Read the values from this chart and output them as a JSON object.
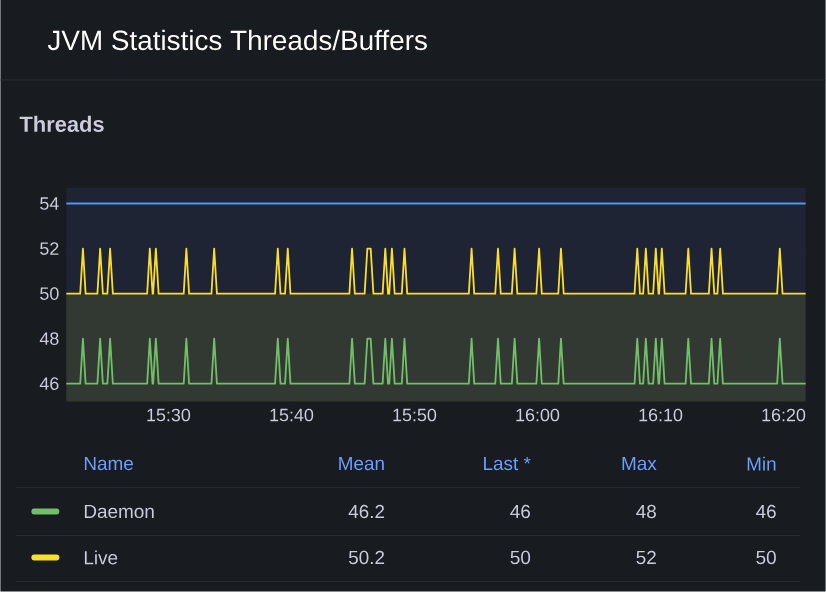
{
  "chart_data": {
    "type": "line",
    "title": "JVM Statistics Threads/Buffers",
    "subtitle": "Threads",
    "x": [
      15.3617,
      15.3805,
      15.3842,
      15.3878,
      15.4038,
      15.4075,
      15.4112,
      15.4173,
      15.421,
      15.4247,
      15.4712,
      15.4748,
      15.4785,
      15.4793,
      15.483,
      15.4867,
      15.5207,
      15.5243,
      15.528,
      15.5583,
      15.562,
      15.5657,
      15.6445,
      15.6482,
      15.6518,
      15.658,
      15.6617,
      15.6653,
      15.7452,
      15.7488,
      15.7525,
      15.7658,
      15.7695,
      15.774,
      15.7777,
      15.7902,
      15.7938,
      15.7975,
      15.7992,
      15.8028,
      15.8065,
      15.8162,
      15.8198,
      15.8235,
      15.907,
      15.9107,
      15.9143,
      15.9428,
      15.9465,
      15.9502,
      15.9653,
      15.969,
      15.9727,
      15.9985,
      16.0022,
      16.0058,
      16.0282,
      16.0318,
      16.0355,
      16.1315,
      16.1352,
      16.1388,
      16.1432,
      16.1468,
      16.1505,
      16.1567,
      16.1603,
      16.164,
      16.1648,
      16.1685,
      16.1722,
      16.2007,
      16.2043,
      16.208,
      16.2322,
      16.2358,
      16.2395,
      16.2438,
      16.2475,
      16.2512,
      16.3247,
      16.3283,
      16.332,
      16.3633
    ],
    "series": [
      {
        "name": "Daemon",
        "color": "#73bf69",
        "values": [
          46,
          46,
          48,
          46,
          46,
          48,
          46,
          46,
          48,
          46,
          46,
          48,
          46,
          46,
          48,
          46,
          46,
          48,
          46,
          46,
          48,
          46,
          46,
          48,
          46,
          46,
          48,
          46,
          46,
          48,
          46,
          46,
          48,
          48,
          46,
          46,
          48,
          46,
          46,
          48,
          46,
          46,
          48,
          46,
          46,
          48,
          46,
          46,
          48,
          46,
          46,
          48,
          46,
          46,
          48,
          46,
          46,
          48,
          46,
          46,
          48,
          46,
          46,
          48,
          46,
          46,
          48,
          46,
          46,
          48,
          46,
          46,
          48,
          46,
          46,
          48,
          46,
          46,
          48,
          46,
          46,
          48,
          46,
          46
        ]
      },
      {
        "name": "Live",
        "color": "#fade2a",
        "values": [
          50,
          50,
          52,
          50,
          50,
          52,
          50,
          50,
          52,
          50,
          50,
          52,
          50,
          50,
          52,
          50,
          50,
          52,
          50,
          50,
          52,
          50,
          50,
          52,
          50,
          50,
          52,
          50,
          50,
          52,
          50,
          50,
          52,
          52,
          50,
          50,
          52,
          50,
          50,
          52,
          50,
          50,
          52,
          50,
          50,
          52,
          50,
          50,
          52,
          50,
          50,
          52,
          50,
          50,
          52,
          50,
          50,
          52,
          50,
          50,
          52,
          50,
          50,
          52,
          50,
          50,
          52,
          50,
          50,
          52,
          50,
          50,
          52,
          50,
          50,
          52,
          50,
          50,
          52,
          50,
          50,
          52,
          50,
          50
        ]
      }
    ],
    "xlim": [
      15.3617,
      16.3633
    ],
    "ylim": [
      45.2,
      54.7
    ],
    "xticks": [
      {
        "value": 15.5,
        "label": "15:30"
      },
      {
        "value": 15.6667,
        "label": "15:40"
      },
      {
        "value": 15.8333,
        "label": "15:50"
      },
      {
        "value": 16.0,
        "label": "16:00"
      },
      {
        "value": 16.1667,
        "label": "16:10"
      },
      {
        "value": 16.3333,
        "label": "16:20"
      }
    ],
    "yticks": [
      46,
      48,
      50,
      52,
      54
    ],
    "bands": [
      {
        "axis": "y",
        "from": 45.2,
        "to": 50,
        "color": "#323932"
      },
      {
        "axis": "y",
        "from": 50,
        "to": 54.7,
        "color": "#1e2434"
      }
    ],
    "ref_lines": [
      {
        "axis": "y",
        "value": 54,
        "color": "#5794f2"
      }
    ],
    "grid": true,
    "legend": "bottom",
    "annotations": [
      "Name",
      "Mean",
      "Last *",
      "Max",
      "Min",
      "46.2",
      "46",
      "48",
      "46",
      "50.2",
      "50",
      "52",
      "50"
    ]
  }
}
